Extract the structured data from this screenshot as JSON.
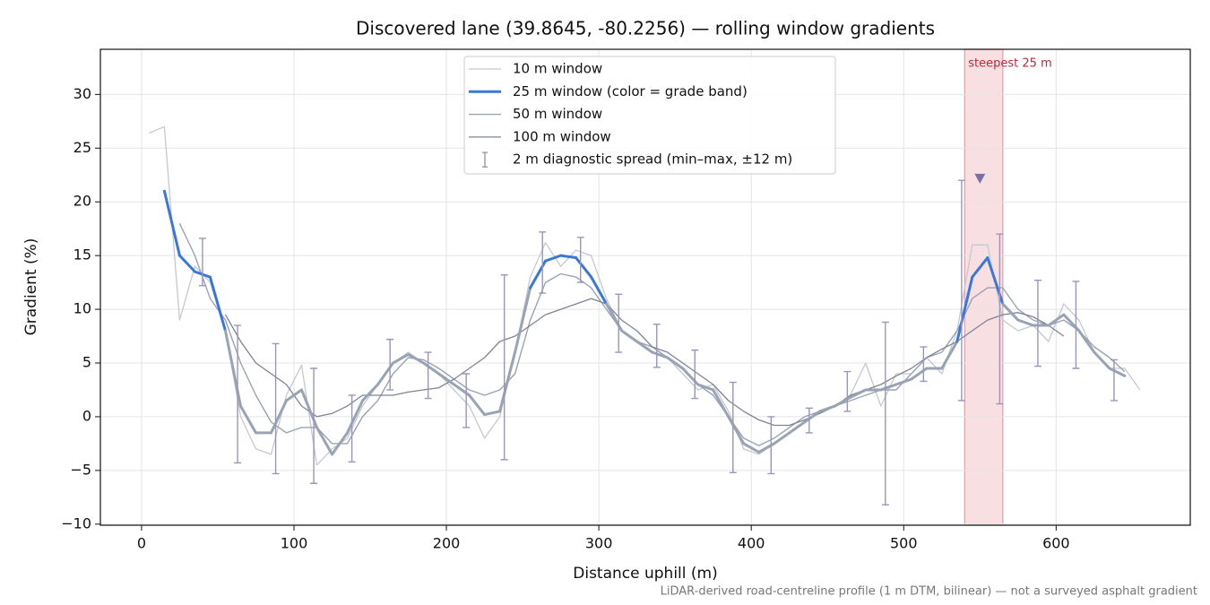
{
  "chart_data": {
    "type": "line",
    "title": "Discovered lane (39.8645, -80.2256) — rolling window gradients",
    "xlabel": "Distance uphill (m)",
    "ylabel": "Gradient (%)",
    "footnote": "LiDAR-derived road-centreline profile (1 m DTM, bilinear) — not a surveyed asphalt gradient",
    "xlim": [
      -27,
      688
    ],
    "ylim": [
      -10.1,
      34.2
    ],
    "xticks": [
      0,
      100,
      200,
      300,
      400,
      500,
      600
    ],
    "yticks": [
      {
        "value": -10,
        "label": "−10"
      },
      {
        "value": -5,
        "label": "−5"
      },
      0,
      5,
      10,
      15,
      20,
      25,
      30
    ],
    "grid": true,
    "legend": "upper center",
    "x": [
      5,
      15,
      25,
      35,
      45,
      55,
      65,
      75,
      85,
      95,
      105,
      115,
      125,
      135,
      145,
      155,
      165,
      175,
      185,
      195,
      205,
      215,
      225,
      235,
      245,
      255,
      265,
      275,
      285,
      295,
      305,
      315,
      325,
      335,
      345,
      355,
      365,
      375,
      385,
      395,
      405,
      415,
      425,
      435,
      445,
      455,
      465,
      475,
      485,
      495,
      505,
      515,
      525,
      535,
      545,
      555,
      565,
      575,
      585,
      595,
      605,
      615,
      625,
      635,
      645,
      655
    ],
    "series": [
      {
        "name": "10 m window",
        "color": "#c4c8d0",
        "width": 1.3,
        "values": [
          26.4,
          27,
          9,
          14,
          12.5,
          8,
          0,
          -3,
          -3.5,
          2,
          4.8,
          -4.5,
          -3,
          -2,
          1,
          3,
          5,
          6,
          5,
          4,
          2.5,
          1,
          -2,
          0,
          6,
          13,
          16.2,
          14,
          15.5,
          15,
          11,
          8,
          7,
          6.5,
          5.5,
          4,
          2.5,
          3,
          0.5,
          -3,
          -3.5,
          -2.5,
          -1.5,
          -0.5,
          0.5,
          1,
          2,
          5,
          1,
          4,
          4,
          5.5,
          4,
          8,
          16,
          16,
          9,
          8,
          8.5,
          7,
          10.5,
          9,
          6,
          4.5,
          4.5,
          2.5
        ]
      },
      {
        "name": "25 m window (color = grade band)",
        "color": "#3a78d8",
        "base_color": "#98a3b3",
        "width": 3,
        "bands": [
          {
            "from": 20,
            "color": "#e08a00"
          },
          {
            "from": 10,
            "color": "#3a78d8"
          }
        ],
        "values": [
          null,
          21,
          15,
          13.5,
          13,
          8,
          1,
          -1.5,
          -1.5,
          1.5,
          2.5,
          -1,
          -3.5,
          -1.5,
          1.5,
          3,
          5,
          5.8,
          5,
          4,
          3,
          2,
          0.2,
          0.5,
          6,
          12,
          14.5,
          15,
          14.8,
          13,
          10.5,
          8,
          7,
          6,
          5.5,
          4.5,
          3,
          2.5,
          0,
          -2.5,
          -3.3,
          -2.5,
          -1.5,
          -0.5,
          0.5,
          1,
          1.8,
          2.5,
          2.5,
          3,
          3.5,
          4.5,
          4.5,
          7,
          13,
          14.8,
          10.5,
          9,
          8.5,
          8.5,
          9.5,
          8,
          6,
          4.5,
          3.8,
          null
        ]
      },
      {
        "name": "50 m window",
        "color": "#9aa3b2",
        "width": 1.4,
        "values": [
          null,
          null,
          18,
          15,
          11,
          9,
          5,
          2,
          -0.5,
          -1.5,
          -1,
          -1,
          -2.5,
          -2.5,
          0,
          1.5,
          4,
          5.5,
          5.3,
          4.5,
          3.5,
          2.5,
          2,
          2.5,
          4,
          9,
          12.5,
          13.3,
          13,
          12,
          10,
          8,
          7,
          6.5,
          5.5,
          4.5,
          3,
          2,
          0,
          -2,
          -2.7,
          -2,
          -1,
          0,
          0.5,
          1,
          1.5,
          2,
          2.5,
          2.5,
          4,
          5.5,
          6,
          8,
          11,
          12,
          12,
          10,
          9,
          8.5,
          9,
          8,
          6.5,
          5.5,
          4.2,
          null
        ]
      },
      {
        "name": "100 m window",
        "color": "#7e8494",
        "width": 1.3,
        "values": [
          null,
          null,
          null,
          null,
          null,
          9.5,
          7,
          5,
          4,
          3,
          1,
          0,
          0.3,
          1,
          2,
          2,
          2,
          2.3,
          2.5,
          2.7,
          3.5,
          4.5,
          5.5,
          7,
          7.5,
          8.5,
          9.5,
          10,
          10.5,
          11,
          10.5,
          9,
          8,
          6.5,
          6,
          5,
          4,
          3,
          1.5,
          0.5,
          -0.3,
          -0.8,
          -0.8,
          -0.3,
          0.3,
          1,
          2,
          2.5,
          3,
          3.8,
          4.5,
          5.5,
          6.3,
          7,
          8,
          9,
          9.5,
          9.7,
          9.3,
          8.5,
          7.5,
          null,
          null,
          null,
          null,
          null
        ]
      }
    ],
    "error_bars": {
      "name": "2 m diagnostic spread (min–max, ±12 m)",
      "color": "#9a95bb",
      "x": [
        40,
        63,
        88,
        113,
        138,
        163,
        188,
        213,
        238,
        263,
        288,
        313,
        338,
        363,
        388,
        413,
        438,
        463,
        488,
        513,
        538,
        563,
        588,
        613,
        638
      ],
      "low": [
        12.2,
        -4.3,
        -5.3,
        -6.2,
        -4.2,
        2.5,
        1.7,
        -1,
        -4,
        11.5,
        12.5,
        6,
        4.6,
        1.7,
        -5.2,
        -5.3,
        -1.5,
        0.5,
        -8.2,
        3.3,
        1.5,
        1.2,
        4.7,
        4.5,
        1.5
      ],
      "high": [
        16.6,
        8.5,
        6.8,
        4.5,
        2,
        7.2,
        6,
        4,
        13.2,
        17.2,
        16.7,
        11.4,
        8.6,
        6.2,
        3.2,
        0,
        0.8,
        4.2,
        8.8,
        6.5,
        22,
        17,
        12.7,
        12.6,
        5.3
      ]
    },
    "annotation": {
      "text": "steepest 25 m",
      "span": [
        540,
        565
      ],
      "color": "#c0283a",
      "fill": "#e89aa6",
      "marker": {
        "x": 550,
        "y": 22.2,
        "color": "#7b6fa8"
      }
    }
  }
}
